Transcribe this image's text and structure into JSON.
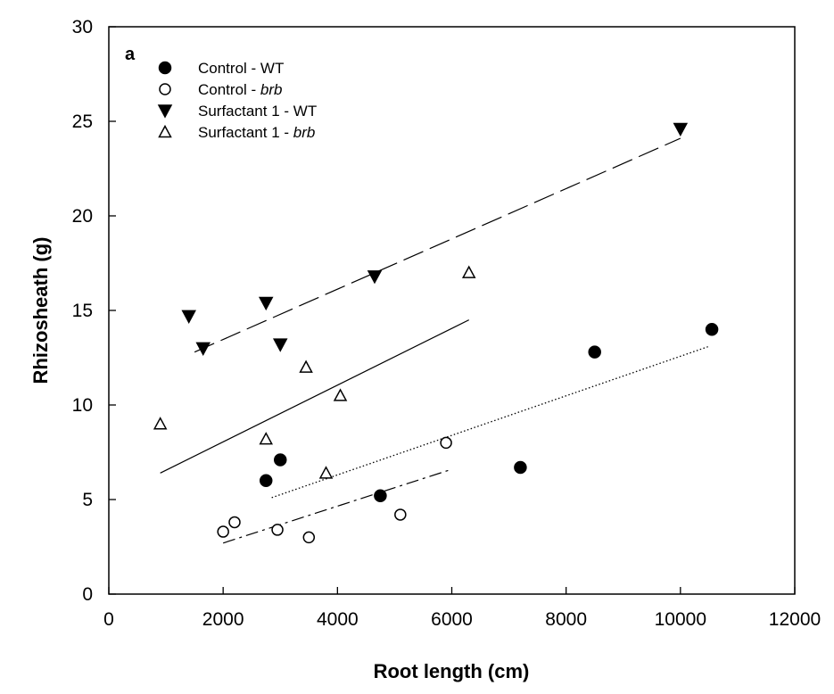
{
  "chart_data": {
    "type": "scatter",
    "panel_label": "a",
    "xlabel": "Root length (cm)",
    "ylabel": "Rhizosheath (g)",
    "xlim": [
      0,
      12000
    ],
    "ylim": [
      0,
      30
    ],
    "xticks": [
      "0",
      "2000",
      "4000",
      "6000",
      "8000",
      "10000",
      "12000"
    ],
    "yticks": [
      "0",
      "5",
      "10",
      "15",
      "20",
      "25",
      "30"
    ],
    "grid": false,
    "legend_position": "top-left",
    "series": [
      {
        "name": "Control - WT",
        "name_parts": [
          "Control - ",
          "WT"
        ],
        "marker": "filled-circle",
        "points": [
          [
            2750,
            6.0
          ],
          [
            3000,
            7.1
          ],
          [
            4750,
            5.2
          ],
          [
            7200,
            6.7
          ],
          [
            8500,
            12.8
          ],
          [
            10550,
            14.0
          ]
        ],
        "fit": {
          "style": "dotted",
          "x": [
            2850,
            10500
          ],
          "y": [
            5.1,
            13.1
          ]
        }
      },
      {
        "name": "Control - brb",
        "name_parts": [
          "Control - ",
          "brb"
        ],
        "marker": "open-circle",
        "points": [
          [
            2000,
            3.3
          ],
          [
            2200,
            3.8
          ],
          [
            2950,
            3.4
          ],
          [
            3500,
            3.0
          ],
          [
            5100,
            4.2
          ],
          [
            5900,
            8.0
          ]
        ],
        "fit": {
          "style": "dash-dot",
          "x": [
            2000,
            6000
          ],
          "y": [
            2.7,
            6.6
          ]
        }
      },
      {
        "name": "Surfactant 1 - WT",
        "name_parts": [
          "Surfactant 1 - ",
          "WT"
        ],
        "marker": "filled-triangle-down",
        "points": [
          [
            1400,
            14.7
          ],
          [
            1650,
            13.0
          ],
          [
            2750,
            15.4
          ],
          [
            3000,
            13.2
          ],
          [
            4650,
            16.8
          ],
          [
            10000,
            24.6
          ]
        ],
        "fit": {
          "style": "long-dash",
          "x": [
            1500,
            10000
          ],
          "y": [
            12.8,
            24.1
          ]
        }
      },
      {
        "name": "Surfactant 1 - brb",
        "name_parts": [
          "Surfactant 1 - ",
          "brb"
        ],
        "marker": "open-triangle-up",
        "points": [
          [
            900,
            9.0
          ],
          [
            2750,
            8.2
          ],
          [
            3450,
            12.0
          ],
          [
            3800,
            6.4
          ],
          [
            4050,
            10.5
          ],
          [
            6300,
            17.0
          ]
        ],
        "fit": {
          "style": "solid",
          "x": [
            900,
            6300
          ],
          "y": [
            6.4,
            14.5
          ]
        }
      }
    ]
  }
}
